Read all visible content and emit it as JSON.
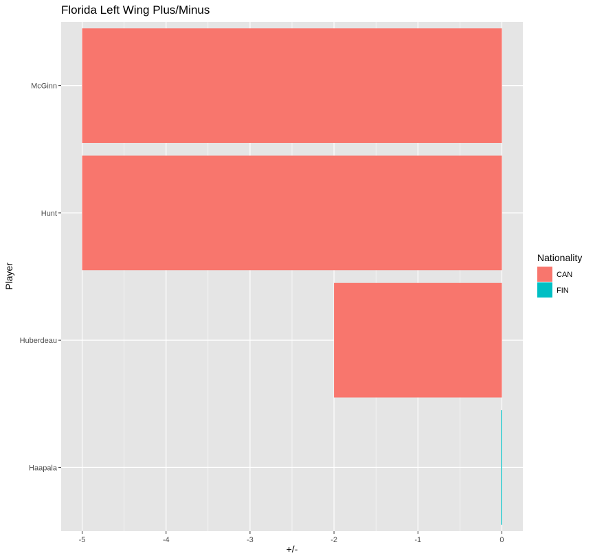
{
  "chart_data": {
    "type": "bar",
    "orientation": "horizontal",
    "title": "Florida Left Wing Plus/Minus",
    "xlabel": "+/-",
    "ylabel": "Player",
    "categories": [
      "McGinn",
      "Hunt",
      "Huberdeau",
      "Haapala"
    ],
    "values": [
      -5,
      -5,
      -2,
      0
    ],
    "nationality": [
      "CAN",
      "CAN",
      "CAN",
      "FIN"
    ],
    "xlim": [
      -5.25,
      0.25
    ],
    "x_ticks": [
      -5,
      -4,
      -3,
      -2,
      -1,
      0
    ],
    "grid": true,
    "legend": {
      "title": "Nationality",
      "position": "right",
      "entries": [
        {
          "label": "CAN",
          "color": "#F8766D"
        },
        {
          "label": "FIN",
          "color": "#00BFC4"
        }
      ]
    }
  },
  "colors": {
    "panel_background": "#E5E5E5",
    "grid_line": "#FFFFFF"
  }
}
